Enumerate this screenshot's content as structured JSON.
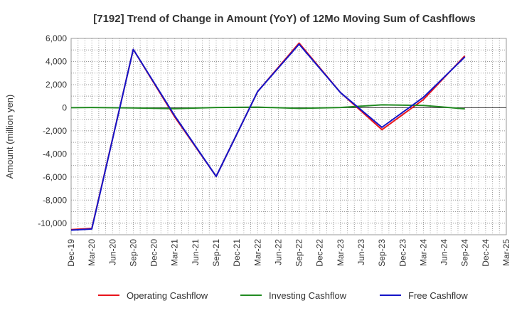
{
  "chart_data": {
    "type": "line",
    "title": "[7192]  Trend of Change in Amount (YoY) of 12Mo Moving Sum of Cashflows",
    "xlabel": "",
    "ylabel": "Amount (million yen)",
    "ylim": [
      -11000,
      6000
    ],
    "yticks": [
      6000,
      4000,
      2000,
      0,
      -2000,
      -4000,
      -6000,
      -8000,
      -10000
    ],
    "ytick_labels": [
      "6,000",
      "4,000",
      "2,000",
      "0",
      "-2,000",
      "-4,000",
      "-6,000",
      "-8,000",
      "-10,000"
    ],
    "categories": [
      "Dec-19",
      "Mar-20",
      "Jun-20",
      "Sep-20",
      "Dec-20",
      "Mar-21",
      "Jun-21",
      "Sep-21",
      "Dec-21",
      "Mar-22",
      "Jun-22",
      "Sep-22",
      "Dec-22",
      "Mar-23",
      "Jun-23",
      "Sep-23",
      "Dec-23",
      "Mar-24",
      "Jun-24",
      "Sep-24",
      "Dec-24",
      "Mar-25"
    ],
    "grid": true,
    "legend_position": "bottom",
    "series": [
      {
        "name": "Operating Cashflow",
        "color": "#e8141b",
        "values": [
          -10550,
          -10450,
          null,
          5050,
          null,
          -800,
          null,
          -5950,
          null,
          1400,
          null,
          5600,
          null,
          1300,
          null,
          -1900,
          null,
          700,
          null,
          4500,
          null,
          null
        ]
      },
      {
        "name": "Investing Cashflow",
        "color": "#228b22",
        "values": [
          0,
          20,
          null,
          -20,
          null,
          -80,
          null,
          20,
          null,
          50,
          null,
          -60,
          null,
          20,
          null,
          250,
          null,
          200,
          null,
          -100,
          null,
          null
        ]
      },
      {
        "name": "Free Cashflow",
        "color": "#1414c8",
        "values": [
          -10600,
          -10500,
          null,
          5050,
          null,
          -700,
          null,
          -5950,
          null,
          1400,
          null,
          5500,
          null,
          1300,
          null,
          -1700,
          null,
          900,
          null,
          4400,
          null,
          null
        ]
      }
    ]
  }
}
